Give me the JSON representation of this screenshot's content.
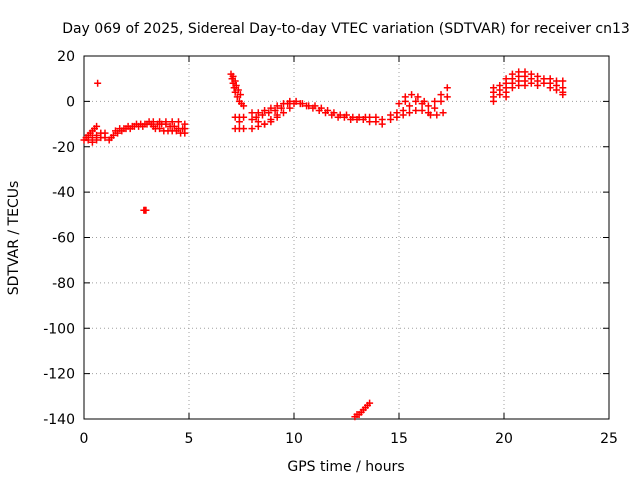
{
  "chart_data": {
    "type": "scatter",
    "title": "Day 069 of 2025, Sidereal Day-to-day VTEC variation (SDTVAR) for receiver cn13",
    "xlabel": "GPS time / hours",
    "ylabel": "SDTVAR / TECUs",
    "xlim": [
      0,
      25
    ],
    "ylim": [
      -140,
      20
    ],
    "xticks": [
      0,
      5,
      10,
      15,
      20,
      25
    ],
    "yticks": [
      20,
      0,
      -20,
      -40,
      -60,
      -80,
      -100,
      -120,
      -140
    ],
    "grid": true,
    "marker": "plus",
    "marker_color": "#ff0000",
    "series": [
      {
        "name": "early-dense",
        "points": [
          [
            0.0,
            -17
          ],
          [
            0.1,
            -16
          ],
          [
            0.2,
            -15
          ],
          [
            0.3,
            -14
          ],
          [
            0.4,
            -13
          ],
          [
            0.5,
            -12
          ],
          [
            0.6,
            -11
          ],
          [
            0.2,
            -17
          ],
          [
            0.4,
            -16
          ],
          [
            0.6,
            -15
          ],
          [
            0.8,
            -14
          ],
          [
            1.0,
            -14
          ],
          [
            1.0,
            -16
          ],
          [
            0.8,
            -16
          ],
          [
            0.6,
            -17
          ],
          [
            0.4,
            -18
          ],
          [
            1.2,
            -17
          ],
          [
            1.3,
            -16
          ],
          [
            1.4,
            -15
          ],
          [
            1.6,
            -14
          ],
          [
            1.8,
            -13
          ],
          [
            2.0,
            -12
          ],
          [
            2.2,
            -12
          ],
          [
            2.4,
            -11
          ],
          [
            2.6,
            -11
          ],
          [
            2.8,
            -11
          ],
          [
            3.0,
            -10
          ],
          [
            3.2,
            -10
          ],
          [
            1.5,
            -13
          ],
          [
            1.7,
            -12
          ],
          [
            1.9,
            -12
          ],
          [
            2.1,
            -11
          ],
          [
            2.3,
            -11
          ],
          [
            2.5,
            -10
          ],
          [
            2.7,
            -10
          ],
          [
            2.9,
            -10
          ],
          [
            3.1,
            -9
          ]
        ]
      },
      {
        "name": "morning-band",
        "points": [
          [
            3.3,
            -11
          ],
          [
            3.5,
            -10
          ],
          [
            3.7,
            -10
          ],
          [
            3.9,
            -10
          ],
          [
            4.1,
            -11
          ],
          [
            4.3,
            -11
          ],
          [
            4.5,
            -12
          ],
          [
            4.7,
            -12
          ],
          [
            3.4,
            -12
          ],
          [
            3.6,
            -12
          ],
          [
            3.8,
            -13
          ],
          [
            4.0,
            -13
          ],
          [
            4.2,
            -13
          ],
          [
            4.4,
            -13
          ],
          [
            4.6,
            -14
          ],
          [
            4.8,
            -14
          ],
          [
            3.3,
            -9
          ],
          [
            3.6,
            -9
          ],
          [
            3.9,
            -9
          ],
          [
            4.2,
            -9
          ],
          [
            4.5,
            -9
          ],
          [
            4.8,
            -10
          ],
          [
            4.8,
            -12
          ]
        ]
      },
      {
        "name": "isolated",
        "points": [
          [
            0.65,
            8
          ],
          [
            2.9,
            -48
          ],
          [
            2.95,
            -48
          ],
          [
            2.85,
            -48
          ]
        ]
      },
      {
        "name": "steep-descent",
        "points": [
          [
            7.0,
            12
          ],
          [
            7.05,
            10
          ],
          [
            7.1,
            8
          ],
          [
            7.15,
            6
          ],
          [
            7.2,
            4
          ],
          [
            7.3,
            2
          ],
          [
            7.4,
            0
          ],
          [
            7.5,
            -1
          ],
          [
            7.6,
            -2
          ],
          [
            7.1,
            11
          ],
          [
            7.2,
            9
          ],
          [
            7.25,
            7
          ],
          [
            7.35,
            5
          ],
          [
            7.45,
            3
          ]
        ]
      },
      {
        "name": "post-descent",
        "points": [
          [
            7.2,
            -7
          ],
          [
            7.4,
            -7
          ],
          [
            7.6,
            -7
          ],
          [
            7.2,
            -12
          ],
          [
            7.4,
            -12
          ],
          [
            7.6,
            -12
          ],
          [
            7.4,
            -9
          ]
        ]
      },
      {
        "name": "midday-arc",
        "points": [
          [
            8.0,
            -5
          ],
          [
            8.3,
            -5
          ],
          [
            8.6,
            -4
          ],
          [
            8.9,
            -3
          ],
          [
            9.2,
            -2
          ],
          [
            9.5,
            -1
          ],
          [
            9.8,
            0
          ],
          [
            10.1,
            0
          ],
          [
            10.4,
            -1
          ],
          [
            10.7,
            -2
          ],
          [
            11.0,
            -2
          ],
          [
            11.3,
            -3
          ],
          [
            11.6,
            -4
          ],
          [
            11.9,
            -5
          ],
          [
            12.2,
            -6
          ],
          [
            12.5,
            -6
          ],
          [
            12.8,
            -7
          ],
          [
            13.1,
            -7
          ],
          [
            13.4,
            -7
          ],
          [
            8.2,
            -7
          ],
          [
            8.5,
            -6
          ],
          [
            8.8,
            -5
          ],
          [
            9.1,
            -4
          ],
          [
            9.4,
            -3
          ],
          [
            9.7,
            -1
          ],
          [
            10.0,
            -1
          ],
          [
            10.3,
            -1
          ],
          [
            10.6,
            -2
          ],
          [
            10.9,
            -3
          ],
          [
            11.2,
            -4
          ],
          [
            11.5,
            -5
          ],
          [
            11.8,
            -6
          ],
          [
            12.1,
            -7
          ],
          [
            12.4,
            -7
          ],
          [
            12.7,
            -8
          ],
          [
            13.0,
            -8
          ],
          [
            13.3,
            -8
          ],
          [
            8.0,
            -8
          ],
          [
            8.3,
            -9
          ],
          [
            8.6,
            -10
          ],
          [
            8.9,
            -9
          ],
          [
            9.2,
            -7
          ],
          [
            9.5,
            -5
          ],
          [
            9.8,
            -3
          ],
          [
            8.0,
            -12
          ],
          [
            8.3,
            -11
          ],
          [
            8.6,
            -10
          ],
          [
            8.9,
            -8
          ],
          [
            9.2,
            -6
          ]
        ]
      },
      {
        "name": "afternoon-rise",
        "points": [
          [
            13.6,
            -7
          ],
          [
            13.9,
            -7
          ],
          [
            14.2,
            -8
          ],
          [
            13.6,
            -9
          ],
          [
            13.9,
            -9
          ],
          [
            14.2,
            -10
          ],
          [
            14.6,
            -6
          ],
          [
            14.9,
            -5
          ],
          [
            15.2,
            -4
          ],
          [
            15.5,
            -2
          ],
          [
            15.8,
            0
          ],
          [
            16.1,
            -1
          ],
          [
            16.4,
            -2
          ],
          [
            16.7,
            0
          ],
          [
            17.0,
            3
          ],
          [
            17.3,
            6
          ],
          [
            14.6,
            -8
          ],
          [
            14.9,
            -7
          ],
          [
            15.2,
            -6
          ],
          [
            15.5,
            -5
          ],
          [
            15.8,
            -4
          ],
          [
            16.1,
            -4
          ],
          [
            16.4,
            -5
          ],
          [
            16.7,
            -3
          ],
          [
            17.0,
            0
          ],
          [
            17.3,
            2
          ],
          [
            15.3,
            2
          ],
          [
            15.6,
            3
          ],
          [
            15.9,
            2
          ],
          [
            16.2,
            0
          ],
          [
            16.5,
            -6
          ],
          [
            16.8,
            -6
          ],
          [
            17.1,
            -5
          ],
          [
            15.0,
            -1
          ],
          [
            15.3,
            0
          ]
        ]
      },
      {
        "name": "evening-positive",
        "points": [
          [
            19.5,
            6
          ],
          [
            19.5,
            4
          ],
          [
            19.5,
            2
          ],
          [
            19.5,
            0
          ],
          [
            19.8,
            7
          ],
          [
            19.8,
            5
          ],
          [
            19.8,
            3
          ],
          [
            20.1,
            10
          ],
          [
            20.1,
            8
          ],
          [
            20.1,
            6
          ],
          [
            20.1,
            4
          ],
          [
            20.1,
            2
          ],
          [
            20.4,
            12
          ],
          [
            20.4,
            10
          ],
          [
            20.4,
            8
          ],
          [
            20.4,
            6
          ],
          [
            20.7,
            13
          ],
          [
            20.7,
            11
          ],
          [
            20.7,
            9
          ],
          [
            20.7,
            7
          ],
          [
            21.0,
            13
          ],
          [
            21.0,
            11
          ],
          [
            21.0,
            9
          ],
          [
            21.0,
            7
          ],
          [
            21.3,
            12
          ],
          [
            21.3,
            10
          ],
          [
            21.3,
            8
          ],
          [
            21.6,
            11
          ],
          [
            21.6,
            9
          ],
          [
            21.6,
            7
          ],
          [
            21.9,
            10
          ],
          [
            21.9,
            8
          ],
          [
            22.2,
            10
          ],
          [
            22.2,
            8
          ],
          [
            22.2,
            6
          ],
          [
            22.5,
            9
          ],
          [
            22.5,
            7
          ],
          [
            22.5,
            5
          ],
          [
            22.8,
            9
          ],
          [
            22.8,
            6
          ],
          [
            22.8,
            4
          ],
          [
            22.8,
            3
          ]
        ]
      },
      {
        "name": "deep-outlier",
        "points": [
          [
            12.9,
            -139
          ],
          [
            13.0,
            -138
          ],
          [
            13.1,
            -138
          ],
          [
            13.2,
            -137
          ],
          [
            13.3,
            -136
          ],
          [
            13.4,
            -135
          ],
          [
            13.5,
            -134
          ],
          [
            13.6,
            -133
          ]
        ]
      }
    ]
  }
}
